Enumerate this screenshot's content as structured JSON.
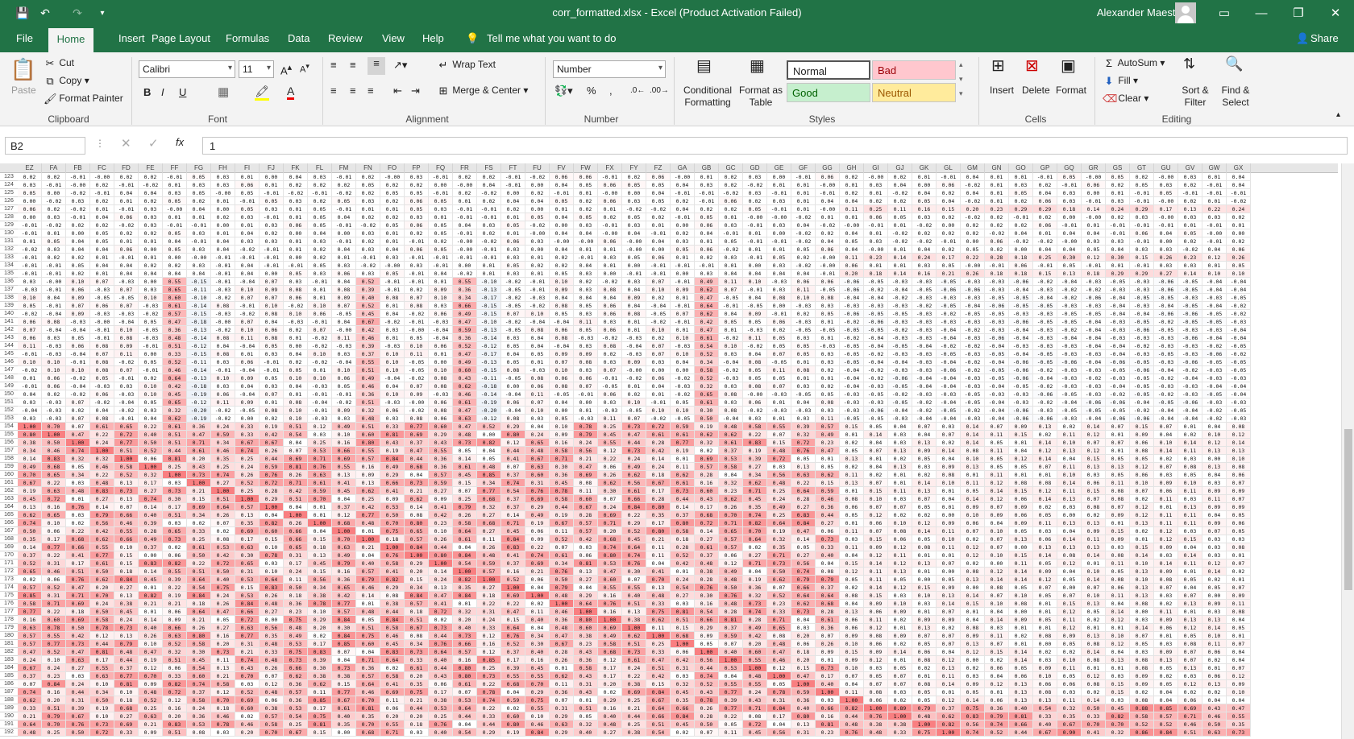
{
  "window": {
    "title": "corr_formatted.xlsx  -  Excel (Product Activation Failed)",
    "user": "Alexander Maestro"
  },
  "tabs": [
    "File",
    "Home",
    "Insert",
    "Page Layout",
    "Formulas",
    "Data",
    "Review",
    "View",
    "Help"
  ],
  "tell_me": "Tell me what you want to do",
  "share": "Share",
  "clipboard": {
    "paste": "Paste",
    "cut": "Cut",
    "copy": "Copy",
    "format_painter": "Format Painter",
    "label": "Clipboard"
  },
  "font": {
    "name": "Calibri",
    "size": "11",
    "label": "Font"
  },
  "alignment": {
    "wrap": "Wrap Text",
    "merge": "Merge & Center",
    "label": "Alignment"
  },
  "number": {
    "format": "Number",
    "label": "Number"
  },
  "styles": {
    "conditional": "Conditional Formatting",
    "format_table": "Format as Table",
    "normal": "Normal",
    "bad": "Bad",
    "good": "Good",
    "neutral": "Neutral",
    "label": "Styles",
    "bad_bg": "#ffc7ce",
    "good_bg": "#c6efce",
    "neutral_bg": "#ffeb9c"
  },
  "cells": {
    "insert": "Insert",
    "delete": "Delete",
    "format": "Format",
    "label": "Cells"
  },
  "editing": {
    "autosum": "AutoSum",
    "fill": "Fill",
    "clear": "Clear",
    "sort": "Sort & Filter",
    "find": "Find & Select",
    "label": "Editing"
  },
  "namebox": "B2",
  "formula": "1",
  "columns": [
    "EZ",
    "FA",
    "FB",
    "FC",
    "FD",
    "FE",
    "FF",
    "FG",
    "FH",
    "FI",
    "FJ",
    "FK",
    "FL",
    "FM",
    "FN",
    "FO",
    "FP",
    "FQ",
    "FR",
    "FS",
    "FT",
    "FU",
    "FV",
    "FW",
    "FX",
    "FY",
    "FZ",
    "GA",
    "GB",
    "GC",
    "GD",
    "GE",
    "GF",
    "GG",
    "GH",
    "GI",
    "GJ",
    "GK",
    "GL",
    "GM",
    "GN",
    "GO",
    "GP",
    "GQ",
    "GR",
    "GS",
    "GT",
    "GU",
    "GV",
    "GW",
    "GX"
  ],
  "first_row": 123,
  "row_count": 70,
  "heat_color": "#f8696b"
}
